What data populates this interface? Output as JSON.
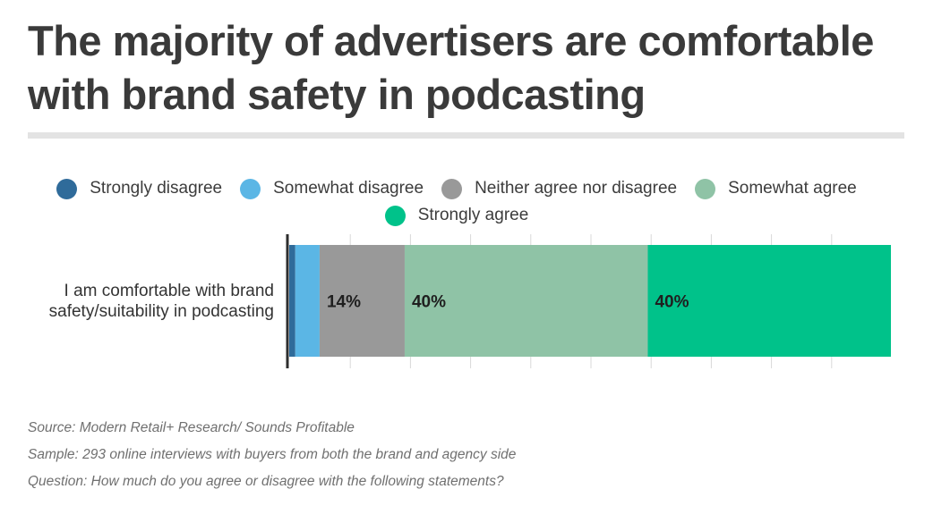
{
  "title": "The majority of advertisers are comfortable with brand safety in podcasting",
  "legend": [
    {
      "label": "Strongly disagree",
      "color": "#2f6b9a"
    },
    {
      "label": "Somewhat disagree",
      "color": "#5bb6e5"
    },
    {
      "label": "Neither agree nor disagree",
      "color": "#999999"
    },
    {
      "label": "Somewhat agree",
      "color": "#8fc3a6"
    },
    {
      "label": "Strongly agree",
      "color": "#00c28a"
    }
  ],
  "chart_data": {
    "type": "bar",
    "orientation": "horizontal",
    "stacked": true,
    "categories": [
      "I am comfortable with brand safety/suitability in podcasting"
    ],
    "series": [
      {
        "name": "Strongly disagree",
        "values": [
          1
        ],
        "color": "#2f6b9a",
        "label": ""
      },
      {
        "name": "Somewhat disagree",
        "values": [
          4
        ],
        "color": "#5bb6e5",
        "label": ""
      },
      {
        "name": "Neither agree nor disagree",
        "values": [
          14
        ],
        "color": "#999999",
        "label": "14%"
      },
      {
        "name": "Somewhat agree",
        "values": [
          40
        ],
        "color": "#8fc3a6",
        "label": "40%"
      },
      {
        "name": "Strongly agree",
        "values": [
          40
        ],
        "color": "#00c28a",
        "label": "40%"
      }
    ],
    "xlim": [
      0,
      99
    ],
    "grid": true,
    "legend_position": "top"
  },
  "notes": {
    "source": "Source: Modern Retail+ Research/ Sounds Profitable",
    "sample": "Sample: 293 online interviews with buyers from both the brand and agency side",
    "question": "Question: How much do you agree or disagree with the following statements?"
  }
}
